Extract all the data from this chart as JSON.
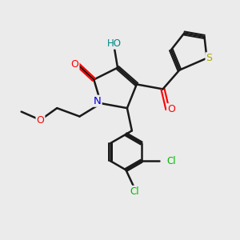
{
  "bg_color": "#ebebeb",
  "bond_color": "#1a1a1a",
  "bond_width": 1.8,
  "fig_size": [
    3.0,
    3.0
  ],
  "dpi": 100,
  "colors": {
    "O": "#ff0000",
    "N": "#0000dd",
    "S": "#aaaa00",
    "Cl": "#00bb00",
    "HO": "#008888",
    "C": "#1a1a1a"
  }
}
